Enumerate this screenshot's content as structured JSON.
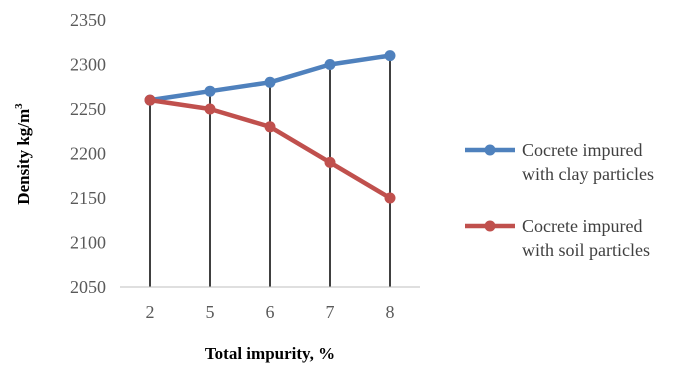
{
  "chart_data": {
    "type": "line",
    "categories": [
      "2",
      "5",
      "6",
      "7",
      "8"
    ],
    "xlabel": "Total impurity, %",
    "ylabel": "Density kg/m",
    "ylabel_sup": "3",
    "ylim": [
      2050,
      2350
    ],
    "yticks": [
      "2050",
      "2100",
      "2150",
      "2200",
      "2250",
      "2300",
      "2350"
    ],
    "legend_position": "right",
    "drop_lines": true,
    "series": [
      {
        "name_line1": "Cocrete impured",
        "name_line2": "with clay particles",
        "color": "#4F81BD",
        "values": [
          2260,
          2270,
          2280,
          2300,
          2310
        ]
      },
      {
        "name_line1": "Cocrete impured",
        "name_line2": "with soil particles",
        "color": "#C0504D",
        "values": [
          2260,
          2250,
          2230,
          2190,
          2150
        ]
      }
    ]
  }
}
